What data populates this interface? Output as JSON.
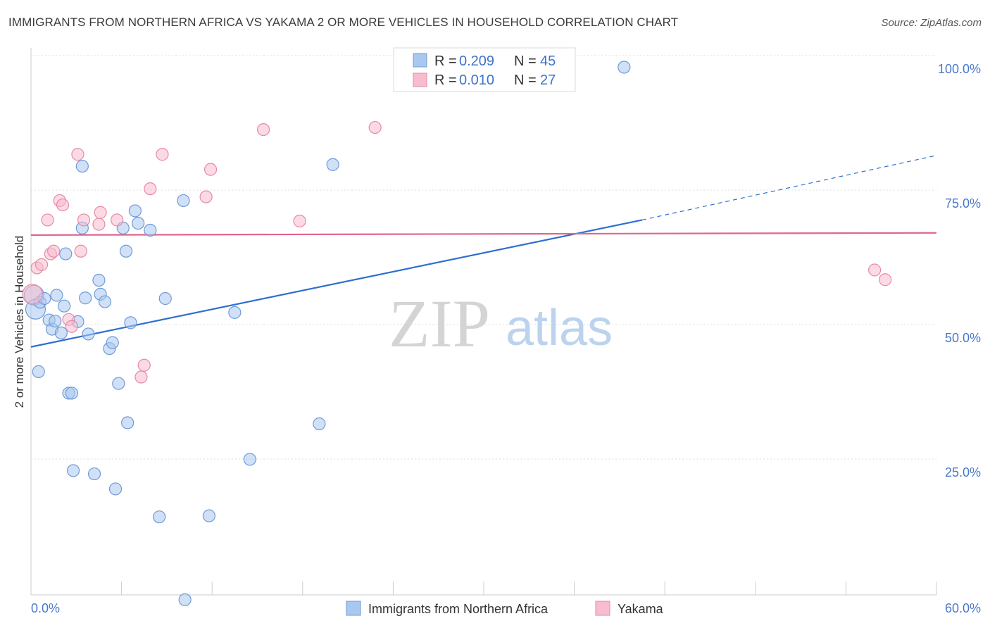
{
  "title": "IMMIGRANTS FROM NORTHERN AFRICA VS YAKAMA 2 OR MORE VEHICLES IN HOUSEHOLD CORRELATION CHART",
  "source": "Source: ZipAtlas.com",
  "watermark": {
    "zip": "ZIP",
    "atlas": "atlas"
  },
  "colors": {
    "blue_fill": "#a9c8f0",
    "blue_stroke": "#6f9ad8",
    "blue_line": "#2f6fcf",
    "pink_fill": "#f7bccd",
    "pink_stroke": "#e68aa6",
    "pink_line": "#e0668d",
    "tick_text": "#4a78c8",
    "grid": "#dddddd"
  },
  "legend": {
    "rows": [
      {
        "r_label": "R = ",
        "r_value": "0.209",
        "n_label": "N = ",
        "n_value": "45"
      },
      {
        "r_label": "R = ",
        "r_value": "0.010",
        "n_label": "N = ",
        "n_value": "27"
      }
    ]
  },
  "chart_data": {
    "type": "scatter",
    "title": "IMMIGRANTS FROM NORTHERN AFRICA VS YAKAMA 2 OR MORE VEHICLES IN HOUSEHOLD CORRELATION CHART",
    "xlabel": "",
    "ylabel": "2 or more Vehicles in Household",
    "xlim": [
      0,
      60
    ],
    "ylim": [
      0,
      102
    ],
    "x_tick_labels": [
      "0.0%",
      "60.0%"
    ],
    "y_ticks": [
      25,
      50,
      75,
      100
    ],
    "y_tick_labels": [
      "25.0%",
      "50.0%",
      "75.0%",
      "100.0%"
    ],
    "grid": true,
    "series": [
      {
        "name": "Immigrants from Northern Africa",
        "color": "blue",
        "points": [
          [
            0.2,
            57.8
          ],
          [
            0.3,
            55.2
          ],
          [
            0.5,
            43.6
          ],
          [
            0.6,
            56.5
          ],
          [
            0.9,
            57.2
          ],
          [
            1.2,
            53.2
          ],
          [
            1.4,
            51.5
          ],
          [
            1.6,
            53.0
          ],
          [
            1.7,
            57.8
          ],
          [
            2.0,
            50.8
          ],
          [
            2.2,
            55.8
          ],
          [
            2.3,
            65.5
          ],
          [
            2.5,
            39.6
          ],
          [
            2.7,
            39.6
          ],
          [
            2.8,
            25.2
          ],
          [
            3.1,
            52.9
          ],
          [
            3.4,
            70.3
          ],
          [
            3.4,
            81.8
          ],
          [
            3.6,
            57.3
          ],
          [
            3.8,
            50.6
          ],
          [
            4.2,
            24.6
          ],
          [
            4.5,
            60.6
          ],
          [
            4.6,
            58.0
          ],
          [
            4.9,
            56.6
          ],
          [
            5.2,
            47.9
          ],
          [
            5.4,
            49.0
          ],
          [
            5.6,
            21.8
          ],
          [
            5.8,
            41.4
          ],
          [
            6.1,
            70.3
          ],
          [
            6.3,
            66.0
          ],
          [
            6.4,
            34.1
          ],
          [
            6.6,
            52.7
          ],
          [
            6.9,
            73.5
          ],
          [
            7.1,
            71.2
          ],
          [
            7.9,
            69.9
          ],
          [
            8.5,
            16.6
          ],
          [
            8.9,
            57.2
          ],
          [
            10.1,
            75.4
          ],
          [
            10.2,
            1.2
          ],
          [
            11.8,
            16.8
          ],
          [
            13.5,
            54.6
          ],
          [
            14.5,
            27.3
          ],
          [
            19.1,
            33.9
          ],
          [
            20.0,
            82.1
          ],
          [
            39.3,
            100.2
          ]
        ],
        "trend": {
          "x": [
            0,
            40.5
          ],
          "y": [
            48.2,
            71.8
          ],
          "dashed_extension": {
            "x": [
              40.5,
              60
            ],
            "y": [
              71.8,
              83.8
            ]
          }
        }
      },
      {
        "name": "Yakama",
        "color": "pink",
        "points": [
          [
            0.4,
            62.9
          ],
          [
            0.7,
            63.5
          ],
          [
            1.1,
            71.8
          ],
          [
            1.3,
            65.5
          ],
          [
            1.5,
            66.0
          ],
          [
            1.9,
            75.4
          ],
          [
            2.1,
            74.6
          ],
          [
            2.5,
            53.3
          ],
          [
            2.7,
            52.0
          ],
          [
            3.1,
            84.0
          ],
          [
            3.3,
            66.0
          ],
          [
            3.5,
            71.8
          ],
          [
            4.5,
            71.0
          ],
          [
            4.6,
            73.2
          ],
          [
            5.7,
            71.8
          ],
          [
            7.3,
            42.6
          ],
          [
            7.5,
            44.8
          ],
          [
            7.9,
            77.6
          ],
          [
            8.7,
            84.0
          ],
          [
            11.6,
            76.1
          ],
          [
            11.9,
            81.2
          ],
          [
            15.4,
            88.6
          ],
          [
            17.8,
            71.6
          ],
          [
            22.8,
            89.0
          ],
          [
            55.9,
            62.5
          ],
          [
            56.6,
            60.7
          ],
          [
            0.1,
            58.0
          ]
        ],
        "trend": {
          "x": [
            0,
            60
          ],
          "y": [
            69.0,
            69.4
          ]
        }
      }
    ]
  }
}
